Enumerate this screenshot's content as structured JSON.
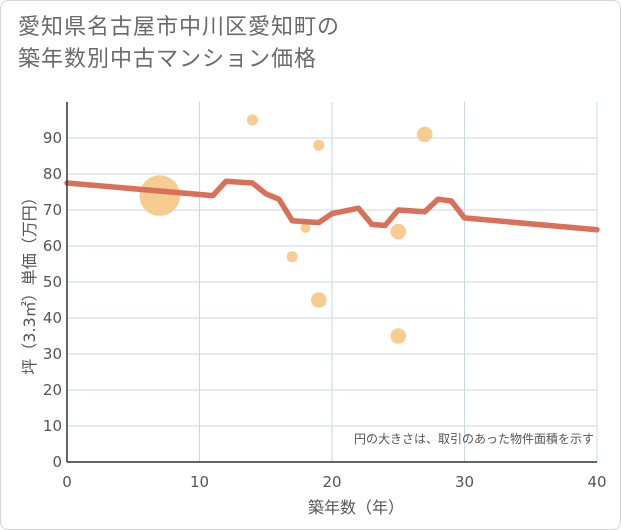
{
  "title_lines": [
    "愛知県名古屋市中川区愛知町の",
    "築年数別中古マンション価格"
  ],
  "chart_data": {
    "type": "scatter",
    "xlabel": "築年数（年）",
    "ylabel": "坪（3.3㎡）単価（万円）",
    "xlim": [
      0,
      40
    ],
    "ylim": [
      0,
      100
    ],
    "xticks": [
      0,
      10,
      20,
      30,
      40
    ],
    "yticks": [
      0,
      10,
      20,
      30,
      40,
      50,
      60,
      70,
      80,
      90
    ],
    "grid": true,
    "note": "円の大きさは、取引のあった物件面積を示す",
    "colors": {
      "line": "#d9705a",
      "bubble": "#f5c98a",
      "grid": "#c9d8e6"
    },
    "series": [
      {
        "type": "bubble",
        "points": [
          {
            "x": 7,
            "y": 74,
            "size": 5
          },
          {
            "x": 14,
            "y": 95,
            "size": 1
          },
          {
            "x": 17,
            "y": 57,
            "size": 1
          },
          {
            "x": 18,
            "y": 65,
            "size": 0.8
          },
          {
            "x": 19,
            "y": 88,
            "size": 1
          },
          {
            "x": 19,
            "y": 45,
            "size": 2
          },
          {
            "x": 25,
            "y": 64,
            "size": 2
          },
          {
            "x": 25,
            "y": 35,
            "size": 2
          },
          {
            "x": 27,
            "y": 91,
            "size": 2
          }
        ]
      },
      {
        "type": "line",
        "points": [
          {
            "x": 0,
            "y": 77.5
          },
          {
            "x": 11,
            "y": 74
          },
          {
            "x": 12,
            "y": 78
          },
          {
            "x": 14,
            "y": 77.5
          },
          {
            "x": 15,
            "y": 74.5
          },
          {
            "x": 16,
            "y": 73
          },
          {
            "x": 17,
            "y": 67
          },
          {
            "x": 19,
            "y": 66.5
          },
          {
            "x": 20,
            "y": 69
          },
          {
            "x": 22,
            "y": 70.5
          },
          {
            "x": 23,
            "y": 66
          },
          {
            "x": 24,
            "y": 65.7
          },
          {
            "x": 25,
            "y": 70
          },
          {
            "x": 27,
            "y": 69.5
          },
          {
            "x": 28,
            "y": 73
          },
          {
            "x": 29,
            "y": 72.5
          },
          {
            "x": 30,
            "y": 67.8
          },
          {
            "x": 40,
            "y": 64.5
          }
        ]
      }
    ]
  }
}
